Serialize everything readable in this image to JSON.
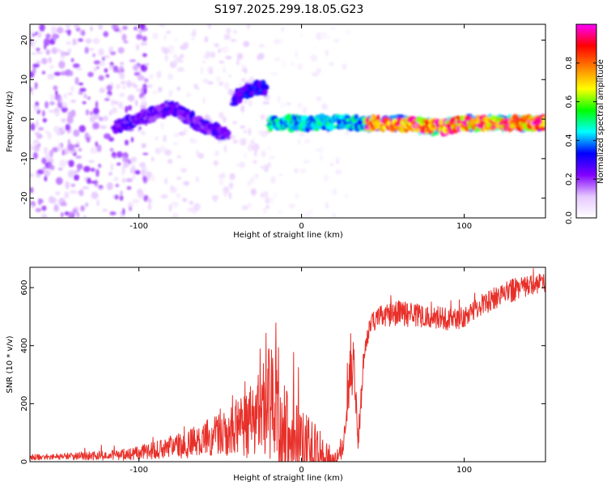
{
  "title": "S197.2025.299.18.05.G23",
  "chart_data": [
    {
      "type": "heatmap",
      "name": "spectrogram",
      "xlabel": "Height of straight line (km)",
      "ylabel": "Frequency (Hz)",
      "xlim": [
        -167,
        150
      ],
      "ylim": [
        -25,
        24
      ],
      "xticks": [
        -100,
        0,
        100
      ],
      "xtick_labels": [
        "-100",
        "0",
        "100"
      ],
      "yticks": [
        -20,
        -10,
        0,
        10,
        20
      ],
      "ytick_labels": [
        "-20",
        "-10",
        "0",
        "10",
        "20"
      ],
      "colorbar": {
        "label": "Normalized spectral amplitude",
        "range": [
          0,
          1
        ],
        "ticks": [
          0.0,
          0.2,
          0.4,
          0.6,
          0.8
        ],
        "tick_labels": [
          "0.0",
          "0.2",
          "0.4",
          "0.6",
          "0.8"
        ],
        "colors": [
          "#ffffff",
          "#e6c8ff",
          "#8000ff",
          "#0000ff",
          "#00ffff",
          "#00ff00",
          "#ffff00",
          "#ff8000",
          "#ff0000",
          "#ff00ff"
        ]
      },
      "features": [
        {
          "kind": "noise",
          "x_range": [
            -167,
            -95
          ],
          "freq_range": [
            -25,
            24
          ],
          "amplitude": 0.12
        },
        {
          "kind": "noise",
          "x_range": [
            -95,
            -20
          ],
          "freq_range": [
            -25,
            24
          ],
          "amplitude": 0.06
        },
        {
          "kind": "noise",
          "x_range": [
            -20,
            30
          ],
          "freq_range": [
            -25,
            24
          ],
          "amplitude": 0.03
        },
        {
          "kind": "ridge",
          "x": [
            -115,
            -100,
            -80,
            -60,
            -45
          ],
          "freq": [
            -2,
            0,
            3,
            -2,
            -4
          ],
          "amplitude": 0.25
        },
        {
          "kind": "ridge",
          "x": [
            -42,
            -35,
            -27,
            -22
          ],
          "freq": [
            5,
            7,
            8,
            8
          ],
          "amplitude": 0.3
        },
        {
          "kind": "ridge",
          "x": [
            -20,
            0,
            20,
            40,
            60,
            80,
            100,
            120,
            150
          ],
          "freq": [
            -1,
            -1,
            -1,
            -1,
            -1,
            -2,
            -1,
            -1,
            -1
          ],
          "amplitude": 0.45
        },
        {
          "kind": "ridge",
          "x": [
            40,
            70,
            90,
            100,
            130,
            150
          ],
          "freq": [
            -1,
            -1.5,
            -2,
            -1,
            -1,
            -1
          ],
          "amplitude": 0.85
        }
      ]
    },
    {
      "type": "line",
      "name": "snr",
      "xlabel": "Height of straight line (km)",
      "ylabel": "SNR (10 * v/v)",
      "xlim": [
        -167,
        150
      ],
      "ylim": [
        0,
        670
      ],
      "xticks": [
        -100,
        0,
        100
      ],
      "xtick_labels": [
        "-100",
        "0",
        "100"
      ],
      "yticks": [
        0,
        200,
        400,
        600
      ],
      "ytick_labels": [
        "0",
        "200",
        "400",
        "600"
      ],
      "color": "#e8302a",
      "x": [
        -167,
        -150,
        -130,
        -110,
        -100,
        -90,
        -80,
        -70,
        -60,
        -50,
        -45,
        -40,
        -35,
        -30,
        -25,
        -20,
        -15,
        -13,
        -10,
        -5,
        0,
        5,
        10,
        15,
        20,
        25,
        28,
        30,
        32,
        35,
        38,
        40,
        42,
        45,
        50,
        55,
        60,
        70,
        80,
        90,
        95,
        100,
        110,
        120,
        130,
        140,
        150
      ],
      "base": [
        15,
        18,
        20,
        25,
        30,
        40,
        50,
        60,
        80,
        100,
        110,
        120,
        130,
        150,
        180,
        190,
        160,
        120,
        100,
        60,
        40,
        30,
        20,
        15,
        10,
        40,
        200,
        350,
        300,
        90,
        320,
        420,
        460,
        490,
        500,
        505,
        510,
        505,
        500,
        490,
        485,
        500,
        540,
        570,
        590,
        610,
        620
      ],
      "amp": [
        10,
        10,
        15,
        20,
        25,
        30,
        40,
        50,
        60,
        80,
        90,
        100,
        120,
        130,
        150,
        200,
        220,
        200,
        180,
        160,
        140,
        120,
        100,
        60,
        30,
        50,
        100,
        120,
        130,
        60,
        80,
        40,
        30,
        40,
        40,
        45,
        45,
        40,
        40,
        40,
        40,
        40,
        40,
        40,
        40,
        35,
        35
      ]
    }
  ]
}
